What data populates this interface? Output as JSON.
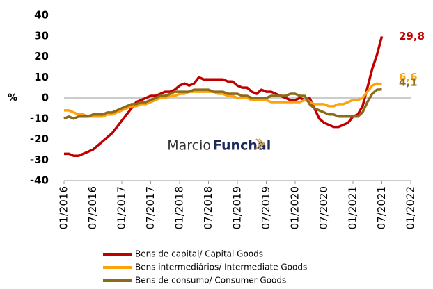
{
  "chart_data": {
    "type": "line",
    "y_label": "%",
    "watermark": [
      "Marcio",
      "Funchal"
    ],
    "x": [
      "01/2016",
      "02/2016",
      "03/2016",
      "04/2016",
      "05/2016",
      "06/2016",
      "07/2016",
      "08/2016",
      "09/2016",
      "10/2016",
      "11/2016",
      "12/2016",
      "01/2017",
      "02/2017",
      "03/2017",
      "04/2017",
      "05/2017",
      "06/2017",
      "07/2017",
      "08/2017",
      "09/2017",
      "10/2017",
      "11/2017",
      "12/2017",
      "01/2018",
      "02/2018",
      "03/2018",
      "04/2018",
      "05/2018",
      "06/2018",
      "07/2018",
      "08/2018",
      "09/2018",
      "10/2018",
      "11/2018",
      "12/2018",
      "01/2019",
      "02/2019",
      "03/2019",
      "04/2019",
      "05/2019",
      "06/2019",
      "07/2019",
      "08/2019",
      "09/2019",
      "10/2019",
      "11/2019",
      "12/2019",
      "01/2020",
      "02/2020",
      "03/2020",
      "04/2020",
      "05/2020",
      "06/2020",
      "07/2020",
      "08/2020",
      "09/2020",
      "10/2020",
      "11/2020",
      "12/2020",
      "01/2021",
      "02/2021",
      "03/2021",
      "04/2021",
      "05/2021",
      "06/2021",
      "07/2021"
    ],
    "xlim": [
      "01/2016",
      "01/2022"
    ],
    "xticks": [
      "01/2016",
      "07/2016",
      "01/2017",
      "07/2017",
      "01/2018",
      "07/2018",
      "01/2019",
      "07/2019",
      "01/2020",
      "07/2020",
      "01/2021",
      "07/2021",
      "01/2022"
    ],
    "ylim": [
      -40,
      40
    ],
    "yticks": [
      -40,
      -30,
      -20,
      -10,
      0,
      10,
      20,
      30,
      40
    ],
    "grid": false,
    "legend": "bottom",
    "series": [
      {
        "name": "Bens de capital/ Capital Goods",
        "color": "#c00000",
        "values": [
          -27,
          -27,
          -28,
          -28,
          -27,
          -26,
          -25,
          -23,
          -21,
          -19,
          -17,
          -14,
          -11,
          -8,
          -5,
          -2,
          -1,
          0,
          1,
          1,
          2,
          3,
          3,
          4,
          6,
          7,
          6,
          7,
          10,
          9,
          9,
          9,
          9,
          9,
          8,
          8,
          6,
          5,
          5,
          3,
          2,
          4,
          3,
          3,
          2,
          1,
          0,
          -1,
          -1,
          0,
          -1,
          0,
          -5,
          -10,
          -12,
          -13,
          -14,
          -14,
          -13,
          -12,
          -9,
          -8,
          -4,
          5,
          14,
          21,
          29.8
        ],
        "value_labels": [
          null,
          null,
          null,
          null,
          null,
          null,
          null,
          null,
          null,
          null,
          null,
          null,
          null,
          null,
          null,
          null,
          null,
          null,
          null,
          null,
          null,
          null,
          null,
          null,
          null,
          null,
          null,
          null,
          null,
          null,
          null,
          null,
          null,
          null,
          null,
          null,
          null,
          null,
          null,
          null,
          null,
          null,
          null,
          null,
          null,
          null,
          null,
          null,
          null,
          null,
          null,
          null,
          null,
          null,
          null,
          null,
          null,
          null,
          null,
          null,
          null,
          null,
          null,
          null,
          null,
          null,
          "29,8"
        ]
      },
      {
        "name": "Bens intermediários/ Intermediate Goods",
        "color": "#ffa20a",
        "values": [
          -6,
          -6,
          -7,
          -8,
          -8,
          -9,
          -9,
          -9,
          -9,
          -8,
          -8,
          -7,
          -6,
          -5,
          -4,
          -4,
          -3,
          -3,
          -2,
          -1,
          0,
          0,
          1,
          1,
          2,
          2,
          3,
          3,
          3,
          3,
          3,
          3,
          2,
          2,
          1,
          1,
          0,
          0,
          0,
          -1,
          -1,
          -1,
          -1,
          -2,
          -2,
          -2,
          -2,
          -2,
          -2,
          -2,
          -1,
          -2,
          -3,
          -3,
          -3,
          -4,
          -4,
          -3,
          -3,
          -2,
          -1,
          -1,
          0,
          3,
          6,
          7,
          6.6
        ],
        "value_labels": [
          null,
          null,
          null,
          null,
          null,
          null,
          null,
          null,
          null,
          null,
          null,
          null,
          null,
          null,
          null,
          null,
          null,
          null,
          null,
          null,
          null,
          null,
          null,
          null,
          null,
          null,
          null,
          null,
          null,
          null,
          null,
          null,
          null,
          null,
          null,
          null,
          null,
          null,
          null,
          null,
          null,
          null,
          null,
          null,
          null,
          null,
          null,
          null,
          null,
          null,
          null,
          null,
          null,
          null,
          null,
          null,
          null,
          null,
          null,
          null,
          null,
          null,
          null,
          null,
          null,
          null,
          "6,6"
        ]
      },
      {
        "name": "Bens de consumo/ Consumer Goods",
        "color": "#8c6a1c",
        "values": [
          -10,
          -9,
          -10,
          -9,
          -9,
          -9,
          -8,
          -8,
          -8,
          -7,
          -7,
          -6,
          -5,
          -4,
          -3,
          -3,
          -2,
          -2,
          -1,
          0,
          1,
          1,
          2,
          3,
          3,
          3,
          3,
          4,
          4,
          4,
          4,
          3,
          3,
          3,
          2,
          2,
          2,
          1,
          1,
          0,
          0,
          0,
          0,
          1,
          1,
          1,
          1,
          2,
          2,
          1,
          1,
          -3,
          -5,
          -6,
          -7,
          -8,
          -8,
          -9,
          -9,
          -9,
          -9,
          -9,
          -7,
          -2,
          2,
          4,
          4.1
        ],
        "value_labels": [
          null,
          null,
          null,
          null,
          null,
          null,
          null,
          null,
          null,
          null,
          null,
          null,
          null,
          null,
          null,
          null,
          null,
          null,
          null,
          null,
          null,
          null,
          null,
          null,
          null,
          null,
          null,
          null,
          null,
          null,
          null,
          null,
          null,
          null,
          null,
          null,
          null,
          null,
          null,
          null,
          null,
          null,
          null,
          null,
          null,
          null,
          null,
          null,
          null,
          null,
          null,
          null,
          null,
          null,
          null,
          null,
          null,
          null,
          null,
          null,
          null,
          null,
          null,
          null,
          null,
          null,
          "4,1"
        ]
      }
    ]
  }
}
